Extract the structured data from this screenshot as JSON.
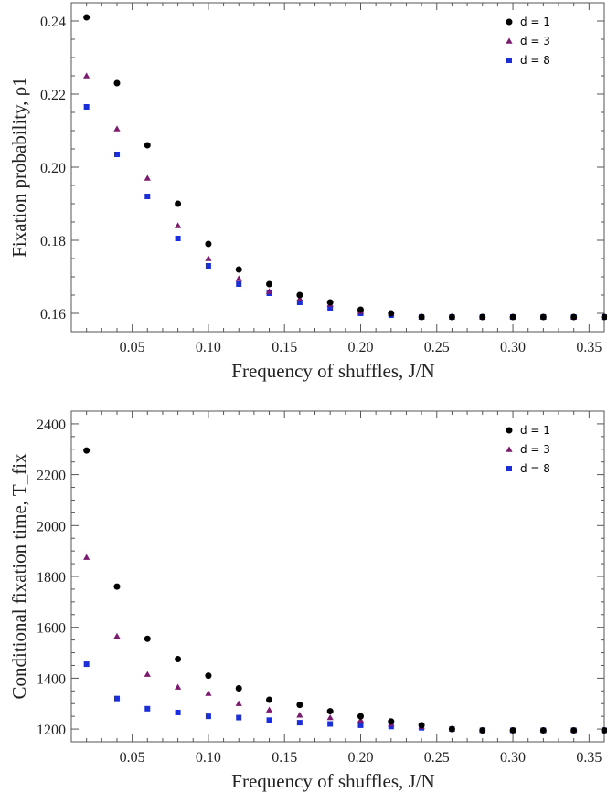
{
  "chart_data": [
    {
      "type": "scatter",
      "title": "",
      "xlabel": "Frequency of shuffles, J/N",
      "ylabel": "Fixation probability, ρ1",
      "xlim": [
        0.01,
        0.36
      ],
      "ylim": [
        0.155,
        0.245
      ],
      "xticks": [
        0.05,
        0.1,
        0.15,
        0.2,
        0.25,
        0.3,
        0.35
      ],
      "xtick_labels": [
        "0.05",
        "0.10",
        "0.15",
        "0.20",
        "0.25",
        "0.30",
        "0.35"
      ],
      "yticks": [
        0.16,
        0.18,
        0.2,
        0.22,
        0.24
      ],
      "ytick_labels": [
        "0.16",
        "0.18",
        "0.20",
        "0.22",
        "0.24"
      ],
      "legend_position": "top-right",
      "x": [
        0.02,
        0.04,
        0.06,
        0.08,
        0.1,
        0.12,
        0.14,
        0.16,
        0.18,
        0.2,
        0.22,
        0.24,
        0.26,
        0.28,
        0.3,
        0.32,
        0.34,
        0.36
      ],
      "series": [
        {
          "name": "d = 1",
          "marker": "circle",
          "color": "#000000",
          "values": [
            0.241,
            0.223,
            0.206,
            0.19,
            0.179,
            0.172,
            0.168,
            0.165,
            0.163,
            0.161,
            0.16,
            0.159,
            0.159,
            0.159,
            0.159,
            0.159,
            0.159,
            0.159
          ]
        },
        {
          "name": "d = 3",
          "marker": "triangle",
          "color": "#7b1a6e",
          "values": [
            0.225,
            0.2105,
            0.197,
            0.184,
            0.175,
            0.1695,
            0.166,
            0.164,
            0.1625,
            0.1605,
            0.16,
            0.159,
            0.159,
            0.159,
            0.159,
            0.159,
            0.159,
            0.159
          ]
        },
        {
          "name": "d = 8",
          "marker": "square",
          "color": "#1a2fd6",
          "values": [
            0.2165,
            0.2035,
            0.192,
            0.1805,
            0.173,
            0.168,
            0.1655,
            0.163,
            0.1615,
            0.16,
            0.1595,
            0.159,
            0.159,
            0.159,
            0.159,
            0.159,
            0.159,
            0.159
          ]
        }
      ]
    },
    {
      "type": "scatter",
      "title": "",
      "xlabel": "Frequency of shuffles, J/N",
      "ylabel": "Conditional fixation time, T_fix",
      "xlim": [
        0.01,
        0.36
      ],
      "ylim": [
        1150,
        2450
      ],
      "xticks": [
        0.05,
        0.1,
        0.15,
        0.2,
        0.25,
        0.3,
        0.35
      ],
      "xtick_labels": [
        "0.05",
        "0.10",
        "0.15",
        "0.20",
        "0.25",
        "0.30",
        "0.35"
      ],
      "yticks": [
        1200,
        1400,
        1600,
        1800,
        2000,
        2200,
        2400
      ],
      "ytick_labels": [
        "1200",
        "1400",
        "1600",
        "1800",
        "2000",
        "2200",
        "2400"
      ],
      "legend_position": "top-right",
      "x": [
        0.02,
        0.04,
        0.06,
        0.08,
        0.1,
        0.12,
        0.14,
        0.16,
        0.18,
        0.2,
        0.22,
        0.24,
        0.26,
        0.28,
        0.3,
        0.32,
        0.34,
        0.36
      ],
      "series": [
        {
          "name": "d = 1",
          "marker": "circle",
          "color": "#000000",
          "values": [
            2295,
            1760,
            1555,
            1475,
            1410,
            1360,
            1315,
            1295,
            1270,
            1250,
            1230,
            1215,
            1200,
            1195,
            1195,
            1195,
            1195,
            1195
          ]
        },
        {
          "name": "d = 3",
          "marker": "triangle",
          "color": "#7b1a6e",
          "values": [
            1875,
            1565,
            1415,
            1365,
            1340,
            1300,
            1275,
            1255,
            1245,
            1235,
            1220,
            1210,
            1200,
            1195,
            1195,
            1195,
            1195,
            1195
          ]
        },
        {
          "name": "d = 8",
          "marker": "square",
          "color": "#1a2fd6",
          "values": [
            1455,
            1320,
            1280,
            1265,
            1250,
            1245,
            1235,
            1225,
            1220,
            1215,
            1210,
            1205,
            1200,
            1195,
            1195,
            1195,
            1195,
            1195
          ]
        }
      ]
    }
  ]
}
